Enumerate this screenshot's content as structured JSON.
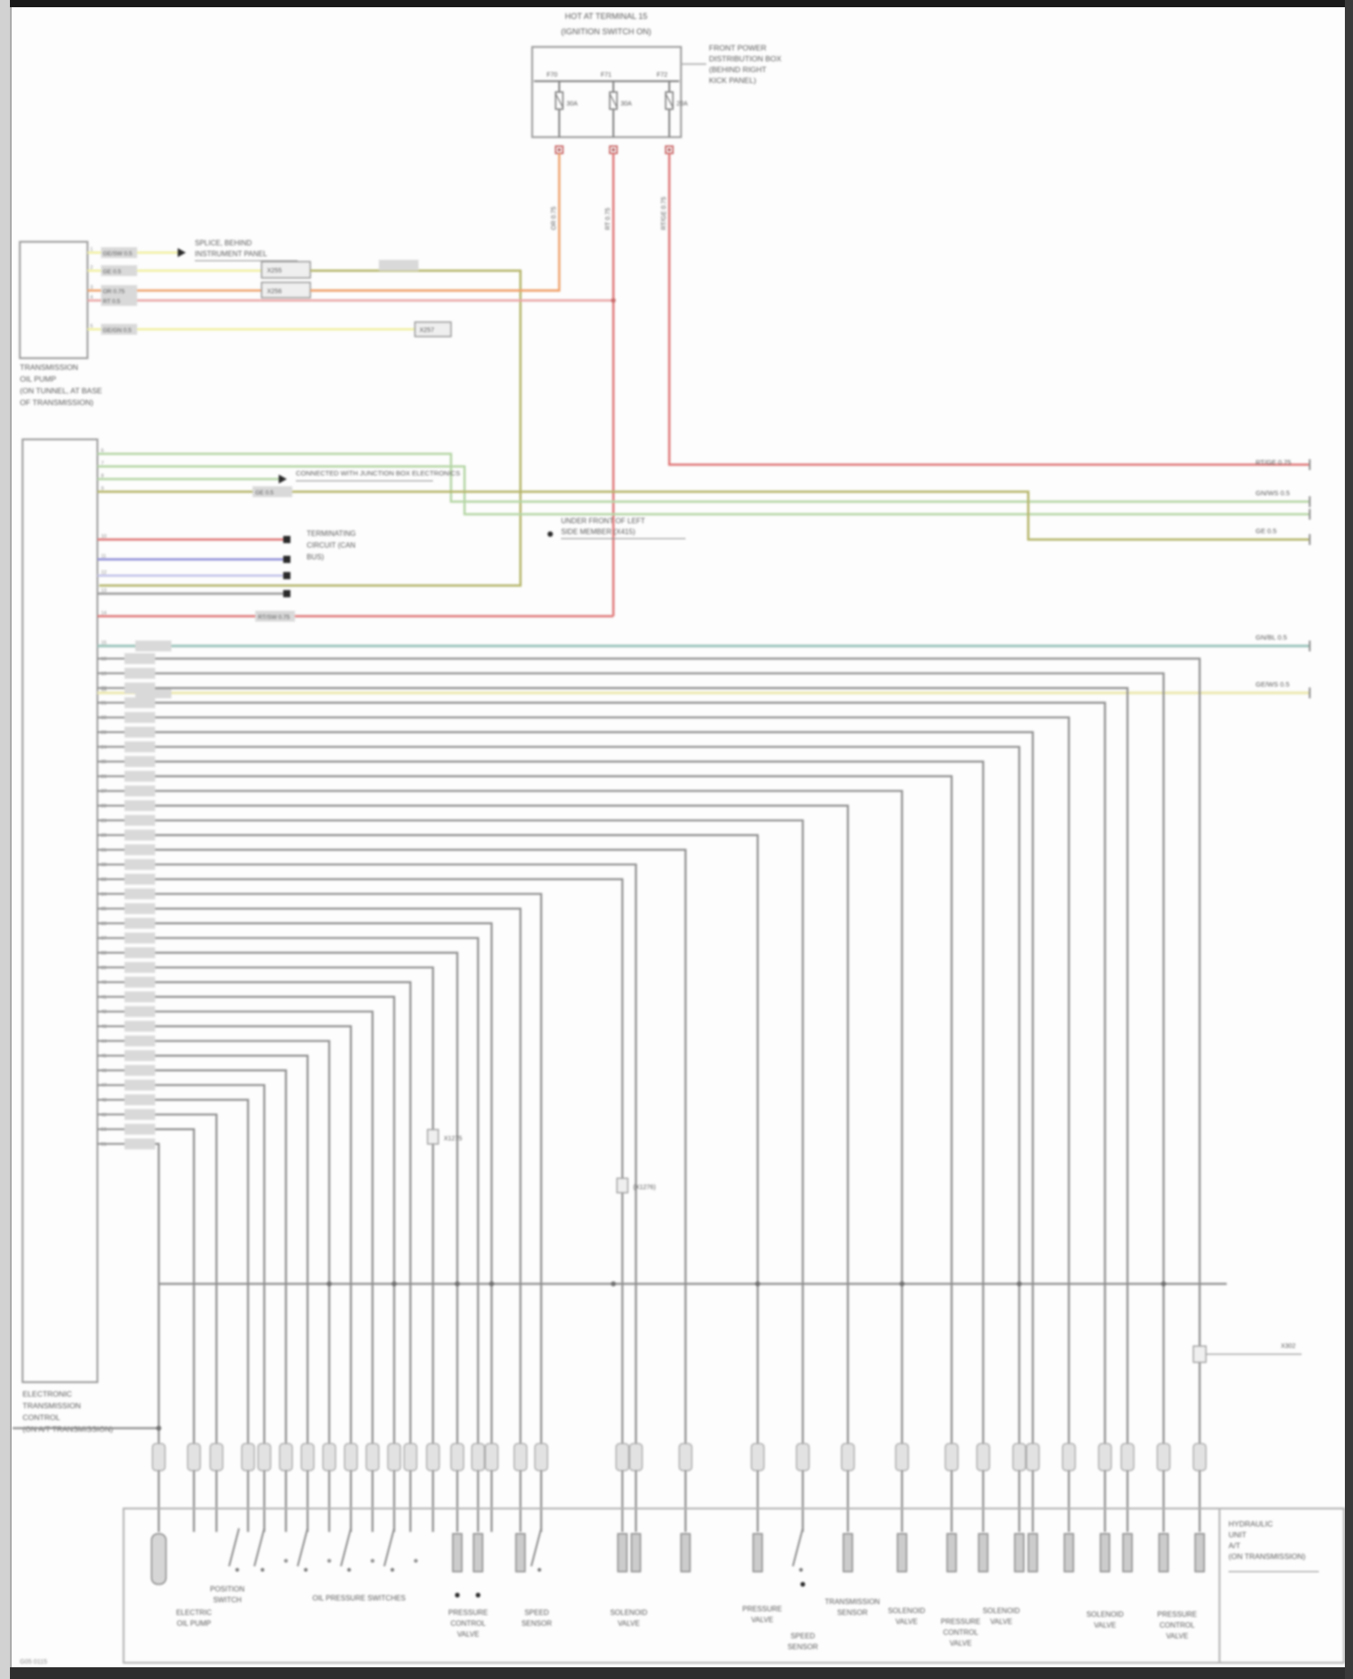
{
  "page": {
    "footer_code": "G05 0115",
    "bg": "#fdfdfd"
  },
  "colors": {
    "accent_red": "#e07878",
    "accent_pink": "#eba6a6",
    "accent_orange": "#efa36e",
    "accent_yellow": "#f0f0a2",
    "accent_olive": "#b5b56a",
    "accent_green": "#b5d6a5",
    "accent_teal": "#9fc6bd",
    "accent_blue": "#8f8fd8",
    "accent_lightblue": "#c3c3ea",
    "accent_paleyellow": "#ece8b0",
    "wire_gray": "#8f8f8f",
    "text_gray": "#5a5a5a"
  },
  "supply": {
    "title": [
      "HOT AT TERMINAL 15",
      "(IGNITION SWITCH ON)"
    ],
    "location": [
      "FRONT POWER",
      "DISTRIBUTION BOX",
      "(BEHIND RIGHT",
      "KICK PANEL)"
    ],
    "fuses": [
      {
        "name": "F70",
        "rating": "30A",
        "wire": "OR 0.75"
      },
      {
        "name": "F71",
        "rating": "30A",
        "wire": "RT 0.75"
      },
      {
        "name": "F72",
        "rating": "20A",
        "wire": "RT/GE 0.75"
      }
    ]
  },
  "pump": {
    "label": [
      "TRANSMISSION",
      "OIL PUMP",
      "(ON TUNNEL, AT BASE",
      "OF TRANSMISSION)"
    ],
    "wires": [
      "GE/SW 0.5",
      "GE 0.5",
      "OR 0.75",
      "RT 0.5",
      "GE/GN 0.5"
    ],
    "connectors": [
      "X255",
      "X256",
      "X257"
    ]
  },
  "ecm": {
    "label": [
      "ELECTRONIC",
      "TRANSMISSION",
      "CONTROL",
      "(ON A/T TRANSMISSION)"
    ],
    "wire_labels": {
      "g1": "GN/WS 0.5",
      "g4": "GE 0.5",
      "r2": "RT/SW 0.75",
      "t1": "GN/BL 0.5",
      "y2": "GE/WS 0.5"
    }
  },
  "notes": {
    "splice1": [
      "SPLICE, BEHIND",
      "INSTRUMENT PANEL"
    ],
    "splice2": "CONNECTED WITH JUNCTION BOX ELECTRONICS",
    "can": [
      "TERMINATING",
      "CIRCUIT (CAN",
      "BUS)"
    ],
    "location": [
      "UNDER FRONT OF LEFT",
      "SIDE MEMBER (X415)"
    ],
    "conn_a": "X1275",
    "conn_b": "(X1276)",
    "conn_c": "X302"
  },
  "right_labels": [
    "RT/GE 0.75",
    "GN/WS 0.5",
    "GE 0.5",
    "GN/BL 0.5",
    "GE/WS 0.5"
  ],
  "unit": {
    "label": [
      "HYDRAULIC",
      "UNIT",
      "A/T",
      "(ON TRANSMISSION)"
    ],
    "components": [
      [
        "ELECTRIC",
        "OIL PUMP"
      ],
      [
        "POSITION",
        "SWITCH"
      ],
      [
        "OIL PRESSURE SWITCHES"
      ],
      [
        "PRESSURE",
        "CONTROL",
        "VALVE"
      ],
      [
        "SPEED",
        "SENSOR"
      ],
      [
        "SOLENOID",
        "VALVE"
      ],
      [
        "PRESSURE",
        "VALVE"
      ],
      [
        "SPEED",
        "SENSOR"
      ],
      [
        "TRANSMISSION",
        "SENSOR"
      ],
      [
        "SOLENOID",
        "VALVE"
      ],
      [
        "PRESSURE",
        "CONTROL",
        "VALVE"
      ],
      [
        "SOLENOID",
        "VALVE"
      ],
      [
        "SOLENOID",
        "VALVE"
      ],
      [
        "PRESSURE",
        "CONTROL",
        "VALVE"
      ]
    ]
  }
}
